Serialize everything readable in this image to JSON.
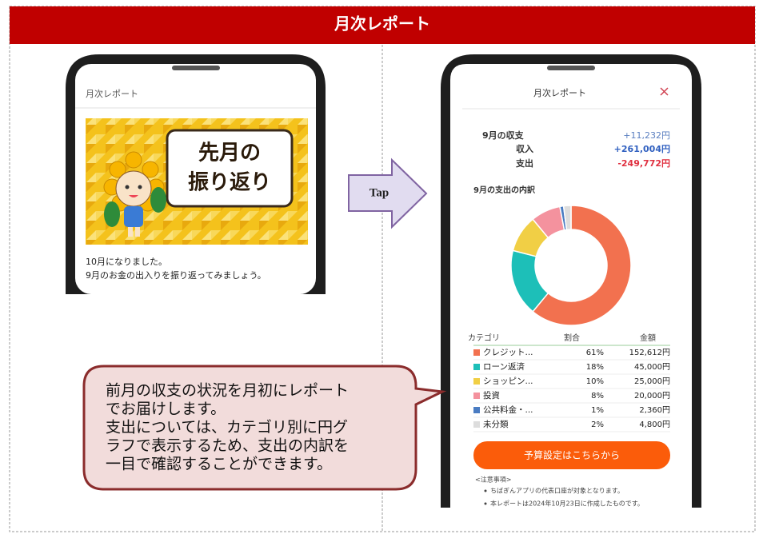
{
  "header": {
    "title": "月次レポート"
  },
  "left_screen": {
    "title": "月次レポート",
    "banner_text": [
      "先月の",
      "振り返り"
    ],
    "message": [
      "10月になりました。",
      "9月のお金の出入りを振り返ってみましょう。"
    ]
  },
  "tap_label": "Tap",
  "right_screen": {
    "title": "月次レポート",
    "summary": {
      "label": "9月の収支",
      "total": "+11,232円",
      "income_label": "収入",
      "income": "+261,004円",
      "expense_label": "支出",
      "expense": "-249,772円"
    },
    "button": "予算設定はこちらから",
    "notes_title": "<注意事項>",
    "notes": [
      "ちばぎんアプリの代表口座が対象となります。",
      "本レポートは2024年10月23日に作成したものです。"
    ]
  },
  "chart_data": {
    "type": "pie",
    "title": "9月の支出の内訳",
    "columns": [
      "カテゴリ",
      "割合",
      "金額"
    ],
    "categories": [
      "クレジット...",
      "ローン返済",
      "ショッピン...",
      "投資",
      "公共料金・...",
      "未分類"
    ],
    "values": [
      61,
      18,
      10,
      8,
      1,
      2
    ],
    "value_labels": [
      "61%",
      "18%",
      "10%",
      "8%",
      "1%",
      "2%"
    ],
    "amounts": [
      "152,612円",
      "45,000円",
      "25,000円",
      "20,000円",
      "2,360円",
      "4,800円"
    ],
    "colors": [
      "#f2714f",
      "#1dbfb8",
      "#f1cf45",
      "#f4929e",
      "#4a7cc2",
      "#dddddd"
    ]
  },
  "callout": [
    "前月の収支の状況を月初にレポート",
    "でお届けします。",
    "支出については、カテゴリ別に円グ",
    "ラフで表示するため、支出の内訳を",
    "一目で確認することができます。"
  ]
}
